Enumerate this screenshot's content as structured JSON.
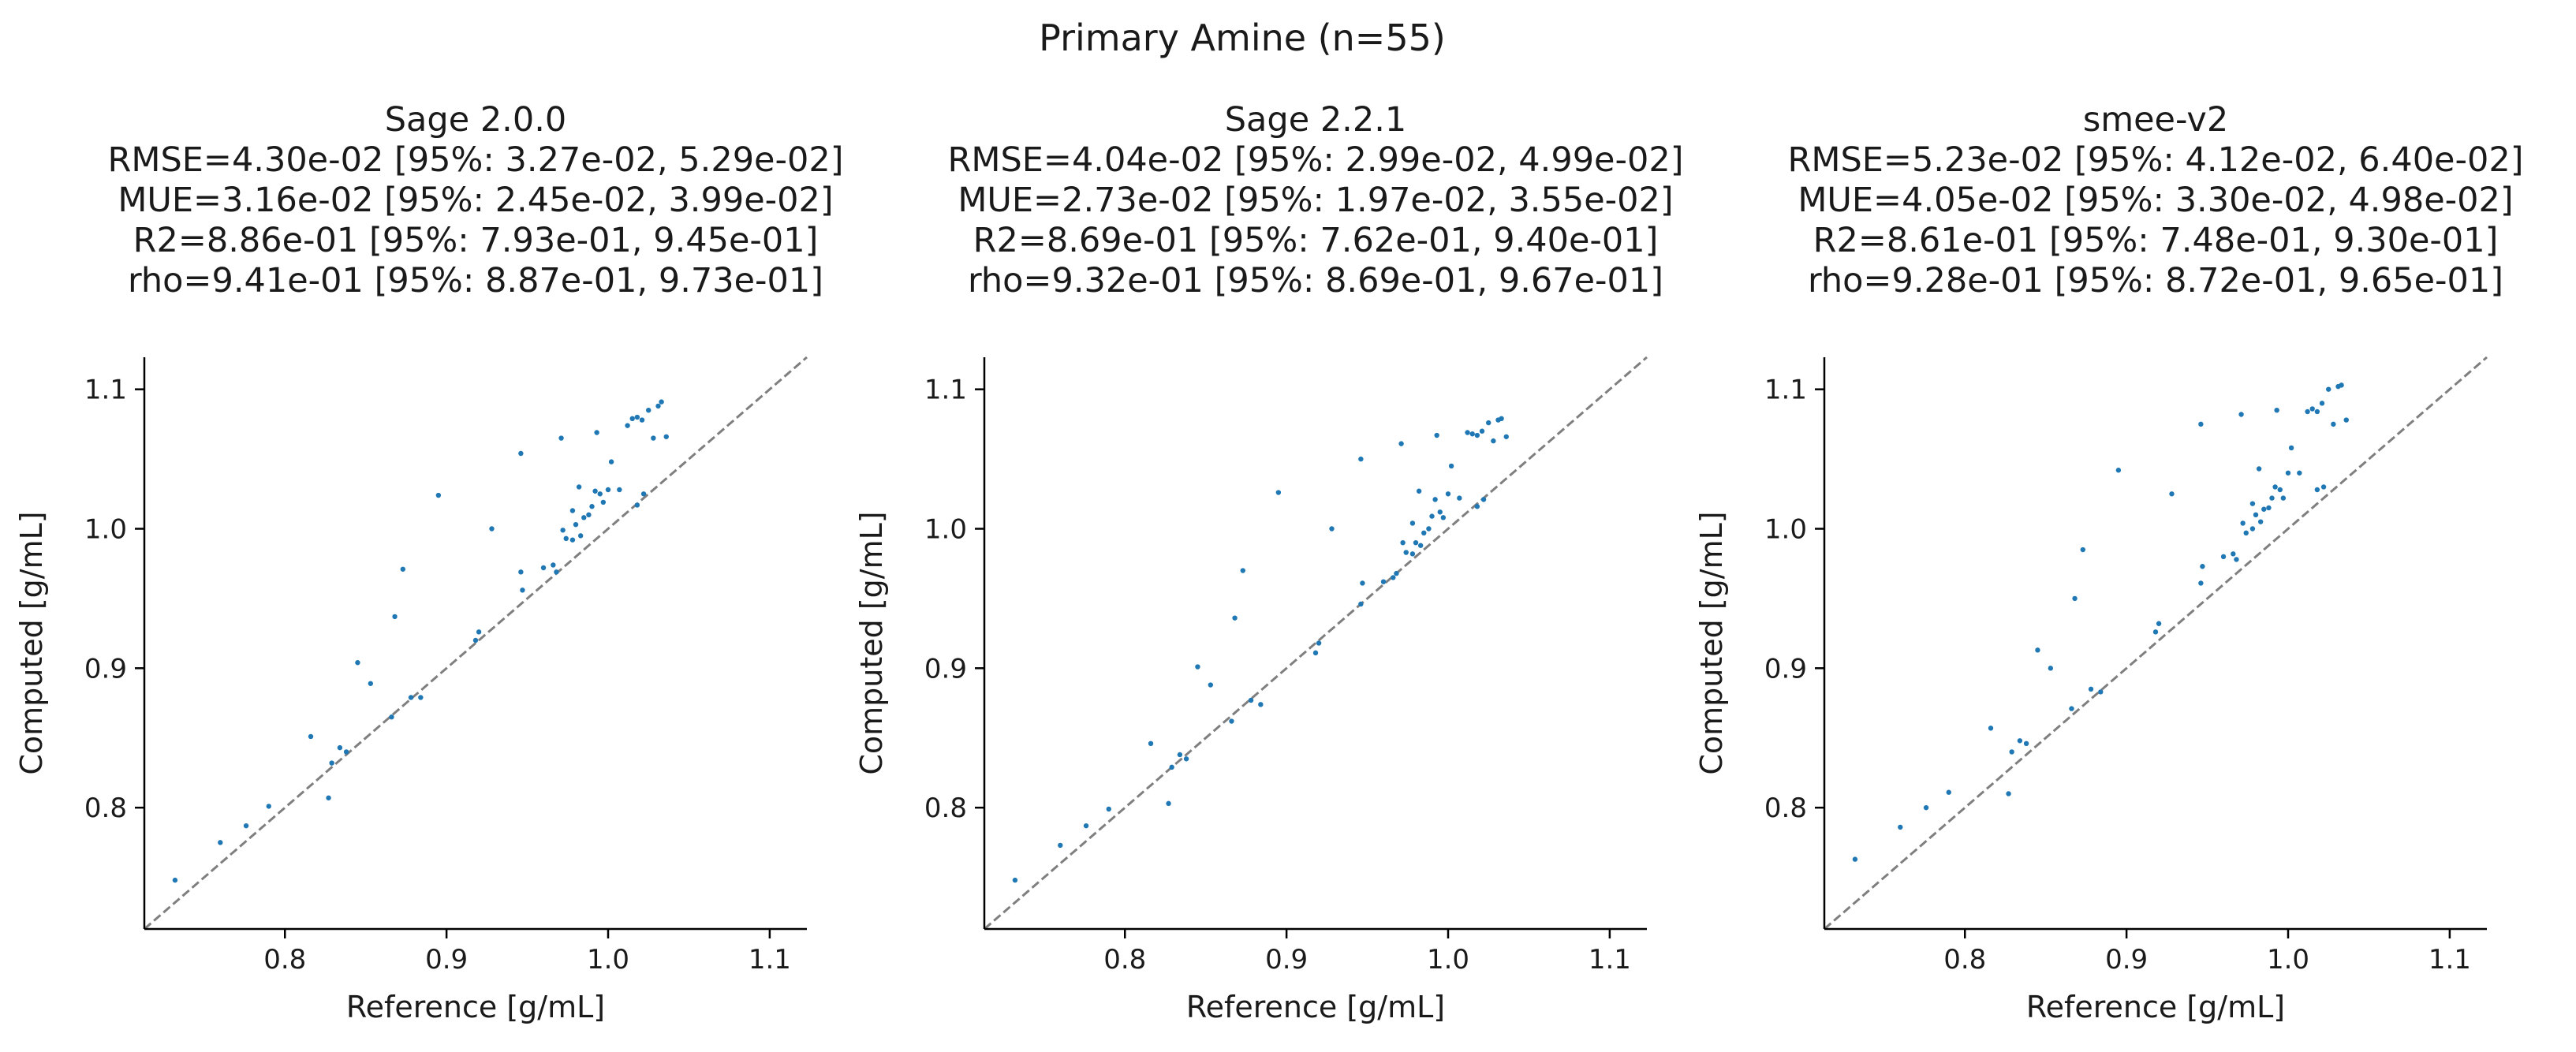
{
  "figure": {
    "title": "Primary Amine (n=55)"
  },
  "chart_data": [
    {
      "type": "scatter",
      "title_lines": [
        "Sage 2.0.0",
        "RMSE=4.30e-02 [95%: 3.27e-02, 5.29e-02]",
        "MUE=3.16e-02 [95%: 2.45e-02, 3.99e-02]",
        "R2=8.86e-01 [95%: 7.93e-01, 9.45e-01]",
        "rho=9.41e-01 [95%: 8.87e-01, 9.73e-01]"
      ],
      "xlabel": "Reference [g/mL]",
      "ylabel": "Computed [g/mL]",
      "xlim": [
        0.713,
        1.123
      ],
      "ylim": [
        0.713,
        1.123
      ],
      "xticks": [
        "0.8",
        "0.9",
        "1.0",
        "1.1"
      ],
      "yticks": [
        "0.8",
        "0.9",
        "1.0",
        "1.1"
      ],
      "reference_line": "y=x",
      "color": "#1f77b4",
      "points": [
        [
          0.732,
          0.748
        ],
        [
          0.76,
          0.775
        ],
        [
          0.776,
          0.787
        ],
        [
          0.79,
          0.801
        ],
        [
          0.816,
          0.851
        ],
        [
          0.827,
          0.807
        ],
        [
          0.829,
          0.832
        ],
        [
          0.834,
          0.843
        ],
        [
          0.838,
          0.84
        ],
        [
          0.845,
          0.904
        ],
        [
          0.853,
          0.889
        ],
        [
          0.866,
          0.865
        ],
        [
          0.868,
          0.937
        ],
        [
          0.873,
          0.971
        ],
        [
          0.878,
          0.879
        ],
        [
          0.884,
          0.879
        ],
        [
          0.895,
          1.024
        ],
        [
          0.918,
          0.92
        ],
        [
          0.92,
          0.926
        ],
        [
          0.928,
          1.0
        ],
        [
          0.946,
          1.054
        ],
        [
          0.946,
          0.969
        ],
        [
          0.947,
          0.956
        ],
        [
          0.96,
          0.972
        ],
        [
          0.966,
          0.974
        ],
        [
          0.968,
          0.969
        ],
        [
          0.971,
          1.065
        ],
        [
          0.972,
          0.999
        ],
        [
          0.974,
          0.993
        ],
        [
          0.978,
          0.992
        ],
        [
          0.978,
          1.013
        ],
        [
          0.98,
          1.003
        ],
        [
          0.982,
          1.03
        ],
        [
          0.983,
          0.995
        ],
        [
          0.985,
          1.008
        ],
        [
          0.988,
          1.01
        ],
        [
          0.99,
          1.016
        ],
        [
          0.992,
          1.027
        ],
        [
          0.993,
          1.069
        ],
        [
          0.995,
          1.025
        ],
        [
          0.997,
          1.019
        ],
        [
          1.0,
          1.028
        ],
        [
          1.002,
          1.048
        ],
        [
          1.007,
          1.028
        ],
        [
          1.012,
          1.074
        ],
        [
          1.015,
          1.079
        ],
        [
          1.018,
          1.08
        ],
        [
          1.018,
          1.017
        ],
        [
          1.022,
          1.025
        ],
        [
          1.025,
          1.085
        ],
        [
          1.028,
          1.065
        ],
        [
          1.031,
          1.088
        ],
        [
          1.033,
          1.091
        ],
        [
          1.036,
          1.066
        ],
        [
          1.021,
          1.078
        ]
      ]
    },
    {
      "type": "scatter",
      "title_lines": [
        "Sage 2.2.1",
        "RMSE=4.04e-02 [95%: 2.99e-02, 4.99e-02]",
        "MUE=2.73e-02 [95%: 1.97e-02, 3.55e-02]",
        "R2=8.69e-01 [95%: 7.62e-01, 9.40e-01]",
        "rho=9.32e-01 [95%: 8.69e-01, 9.67e-01]"
      ],
      "xlabel": "Reference [g/mL]",
      "ylabel": "Computed [g/mL]",
      "xlim": [
        0.713,
        1.123
      ],
      "ylim": [
        0.713,
        1.123
      ],
      "xticks": [
        "0.8",
        "0.9",
        "1.0",
        "1.1"
      ],
      "yticks": [
        "0.8",
        "0.9",
        "1.0",
        "1.1"
      ],
      "reference_line": "y=x",
      "color": "#1f77b4",
      "points": [
        [
          0.732,
          0.748
        ],
        [
          0.76,
          0.773
        ],
        [
          0.776,
          0.787
        ],
        [
          0.79,
          0.799
        ],
        [
          0.816,
          0.846
        ],
        [
          0.827,
          0.803
        ],
        [
          0.829,
          0.829
        ],
        [
          0.834,
          0.838
        ],
        [
          0.838,
          0.835
        ],
        [
          0.845,
          0.901
        ],
        [
          0.853,
          0.888
        ],
        [
          0.866,
          0.862
        ],
        [
          0.868,
          0.936
        ],
        [
          0.873,
          0.97
        ],
        [
          0.878,
          0.877
        ],
        [
          0.884,
          0.874
        ],
        [
          0.895,
          1.026
        ],
        [
          0.918,
          0.911
        ],
        [
          0.92,
          0.918
        ],
        [
          0.928,
          1.0
        ],
        [
          0.946,
          1.05
        ],
        [
          0.946,
          0.946
        ],
        [
          0.947,
          0.961
        ],
        [
          0.96,
          0.962
        ],
        [
          0.966,
          0.965
        ],
        [
          0.968,
          0.968
        ],
        [
          0.971,
          1.061
        ],
        [
          0.972,
          0.99
        ],
        [
          0.974,
          0.983
        ],
        [
          0.978,
          0.982
        ],
        [
          0.978,
          1.004
        ],
        [
          0.98,
          0.99
        ],
        [
          0.982,
          1.027
        ],
        [
          0.983,
          0.988
        ],
        [
          0.985,
          0.997
        ],
        [
          0.988,
          1.0
        ],
        [
          0.99,
          1.009
        ],
        [
          0.992,
          1.021
        ],
        [
          0.993,
          1.067
        ],
        [
          0.995,
          1.012
        ],
        [
          0.997,
          1.008
        ],
        [
          1.0,
          1.025
        ],
        [
          1.002,
          1.045
        ],
        [
          1.007,
          1.022
        ],
        [
          1.012,
          1.069
        ],
        [
          1.015,
          1.068
        ],
        [
          1.018,
          1.067
        ],
        [
          1.018,
          1.016
        ],
        [
          1.022,
          1.021
        ],
        [
          1.025,
          1.076
        ],
        [
          1.028,
          1.063
        ],
        [
          1.031,
          1.078
        ],
        [
          1.033,
          1.079
        ],
        [
          1.036,
          1.066
        ],
        [
          1.021,
          1.07
        ]
      ]
    },
    {
      "type": "scatter",
      "title_lines": [
        "smee-v2",
        "RMSE=5.23e-02 [95%: 4.12e-02, 6.40e-02]",
        "MUE=4.05e-02 [95%: 3.30e-02, 4.98e-02]",
        "R2=8.61e-01 [95%: 7.48e-01, 9.30e-01]",
        "rho=9.28e-01 [95%: 8.72e-01, 9.65e-01]"
      ],
      "xlabel": "Reference [g/mL]",
      "ylabel": "Computed [g/mL]",
      "xlim": [
        0.713,
        1.123
      ],
      "ylim": [
        0.713,
        1.123
      ],
      "xticks": [
        "0.8",
        "0.9",
        "1.0",
        "1.1"
      ],
      "yticks": [
        "0.8",
        "0.9",
        "1.0",
        "1.1"
      ],
      "reference_line": "y=x",
      "color": "#1f77b4",
      "points": [
        [
          0.732,
          0.763
        ],
        [
          0.76,
          0.786
        ],
        [
          0.776,
          0.8
        ],
        [
          0.79,
          0.811
        ],
        [
          0.816,
          0.857
        ],
        [
          0.827,
          0.81
        ],
        [
          0.829,
          0.84
        ],
        [
          0.834,
          0.848
        ],
        [
          0.838,
          0.846
        ],
        [
          0.845,
          0.913
        ],
        [
          0.853,
          0.9
        ],
        [
          0.866,
          0.871
        ],
        [
          0.868,
          0.95
        ],
        [
          0.873,
          0.985
        ],
        [
          0.878,
          0.885
        ],
        [
          0.884,
          0.883
        ],
        [
          0.895,
          1.042
        ],
        [
          0.918,
          0.926
        ],
        [
          0.92,
          0.932
        ],
        [
          0.928,
          1.025
        ],
        [
          0.946,
          1.075
        ],
        [
          0.946,
          0.961
        ],
        [
          0.947,
          0.973
        ],
        [
          0.96,
          0.98
        ],
        [
          0.966,
          0.982
        ],
        [
          0.968,
          0.978
        ],
        [
          0.971,
          1.082
        ],
        [
          0.972,
          1.004
        ],
        [
          0.974,
          0.997
        ],
        [
          0.978,
          1.0
        ],
        [
          0.978,
          1.018
        ],
        [
          0.98,
          1.01
        ],
        [
          0.982,
          1.043
        ],
        [
          0.983,
          1.005
        ],
        [
          0.985,
          1.014
        ],
        [
          0.988,
          1.015
        ],
        [
          0.99,
          1.022
        ],
        [
          0.992,
          1.03
        ],
        [
          0.993,
          1.085
        ],
        [
          0.995,
          1.028
        ],
        [
          0.997,
          1.022
        ],
        [
          1.0,
          1.04
        ],
        [
          1.002,
          1.058
        ],
        [
          1.007,
          1.04
        ],
        [
          1.012,
          1.084
        ],
        [
          1.015,
          1.086
        ],
        [
          1.018,
          1.084
        ],
        [
          1.018,
          1.028
        ],
        [
          1.022,
          1.03
        ],
        [
          1.025,
          1.1
        ],
        [
          1.028,
          1.075
        ],
        [
          1.031,
          1.102
        ],
        [
          1.033,
          1.103
        ],
        [
          1.036,
          1.078
        ],
        [
          1.021,
          1.09
        ]
      ]
    }
  ]
}
